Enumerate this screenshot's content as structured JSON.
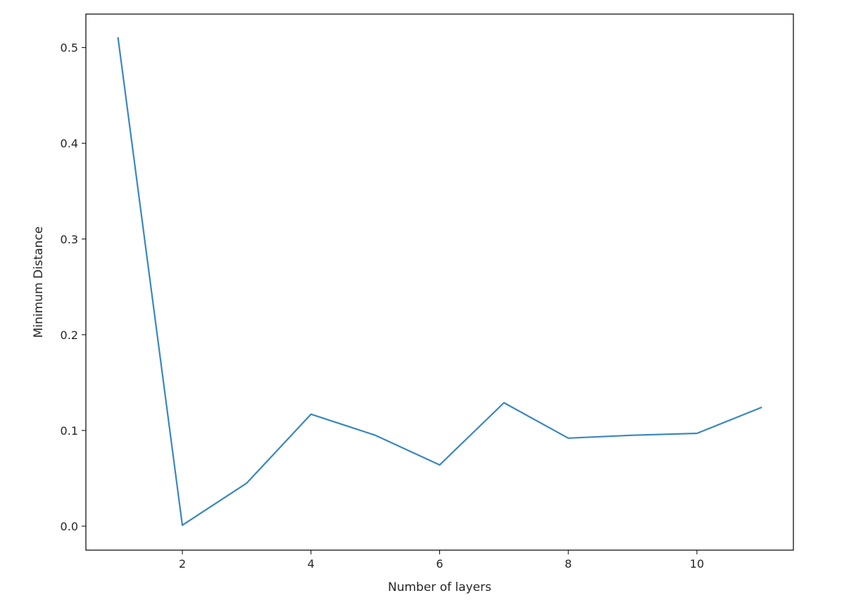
{
  "chart_data": {
    "type": "line",
    "title": "",
    "xlabel": "Number of layers",
    "ylabel": "Minimum Distance",
    "xlim": [
      0.5,
      11.5
    ],
    "ylim": [
      -0.025,
      0.535
    ],
    "grid": false,
    "x_ticks": [
      2,
      4,
      6,
      8,
      10
    ],
    "x_tick_labels": [
      "2",
      "4",
      "6",
      "8",
      "10"
    ],
    "y_ticks": [
      0.0,
      0.1,
      0.2,
      0.3,
      0.4,
      0.5
    ],
    "y_tick_labels": [
      "0.0",
      "0.1",
      "0.2",
      "0.3",
      "0.4",
      "0.5"
    ],
    "line_color": "#3a87bf",
    "series": [
      {
        "x": [
          1,
          2,
          3,
          4,
          5,
          6,
          7,
          8,
          9,
          10,
          11
        ],
        "y": [
          0.51,
          0.001,
          0.045,
          0.117,
          0.095,
          0.064,
          0.129,
          0.092,
          0.095,
          0.097,
          0.124
        ]
      }
    ]
  }
}
